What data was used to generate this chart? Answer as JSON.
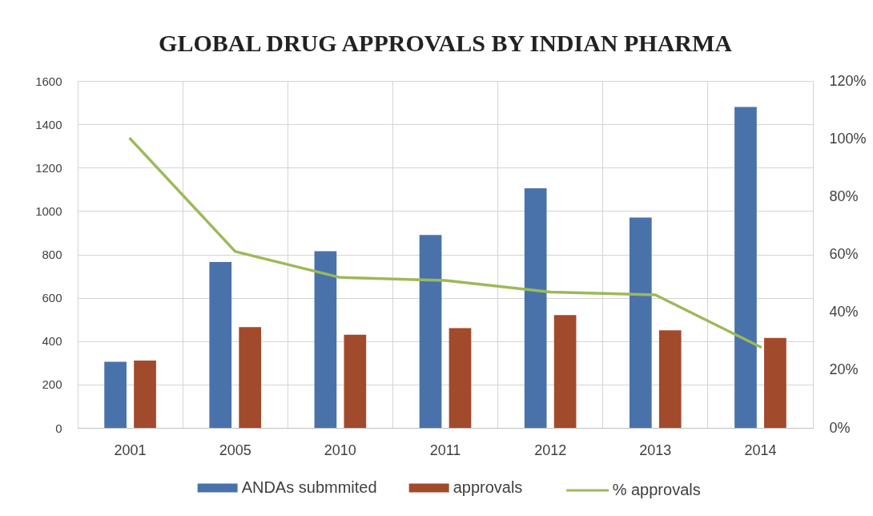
{
  "chart_data": {
    "type": "bar",
    "title": "GLOBAL DRUG APPROVALS BY INDIAN PHARMA",
    "categories": [
      "2001",
      "2005",
      "2010",
      "2011",
      "2012",
      "2013",
      "2014"
    ],
    "series": [
      {
        "name": "ANDAs submmited",
        "color": "#4a72aa",
        "values": [
          305,
          765,
          815,
          890,
          1105,
          970,
          1480
        ]
      },
      {
        "name": "approvals",
        "color": "#a24a2c",
        "values": [
          310,
          465,
          430,
          460,
          520,
          450,
          415
        ]
      },
      {
        "name": "% approvals",
        "type": "line",
        "axis": "y2",
        "color": "#9cb95a",
        "values": [
          100,
          61,
          52,
          51,
          47,
          46,
          28
        ]
      }
    ],
    "ylim": [
      0,
      1600
    ],
    "yticks": [
      0,
      200,
      400,
      600,
      800,
      1000,
      1200,
      1400,
      1600
    ],
    "y2lim": [
      0,
      120
    ],
    "y2ticks": [
      {
        "value": 0,
        "label": "0%"
      },
      {
        "value": 20,
        "label": "20%"
      },
      {
        "value": 40,
        "label": "40%"
      },
      {
        "value": 60,
        "label": "60%"
      },
      {
        "value": 80,
        "label": "80%"
      },
      {
        "value": 100,
        "label": "100%"
      },
      {
        "value": 120,
        "label": "120%"
      }
    ],
    "grid": true,
    "legend": "bottom"
  }
}
